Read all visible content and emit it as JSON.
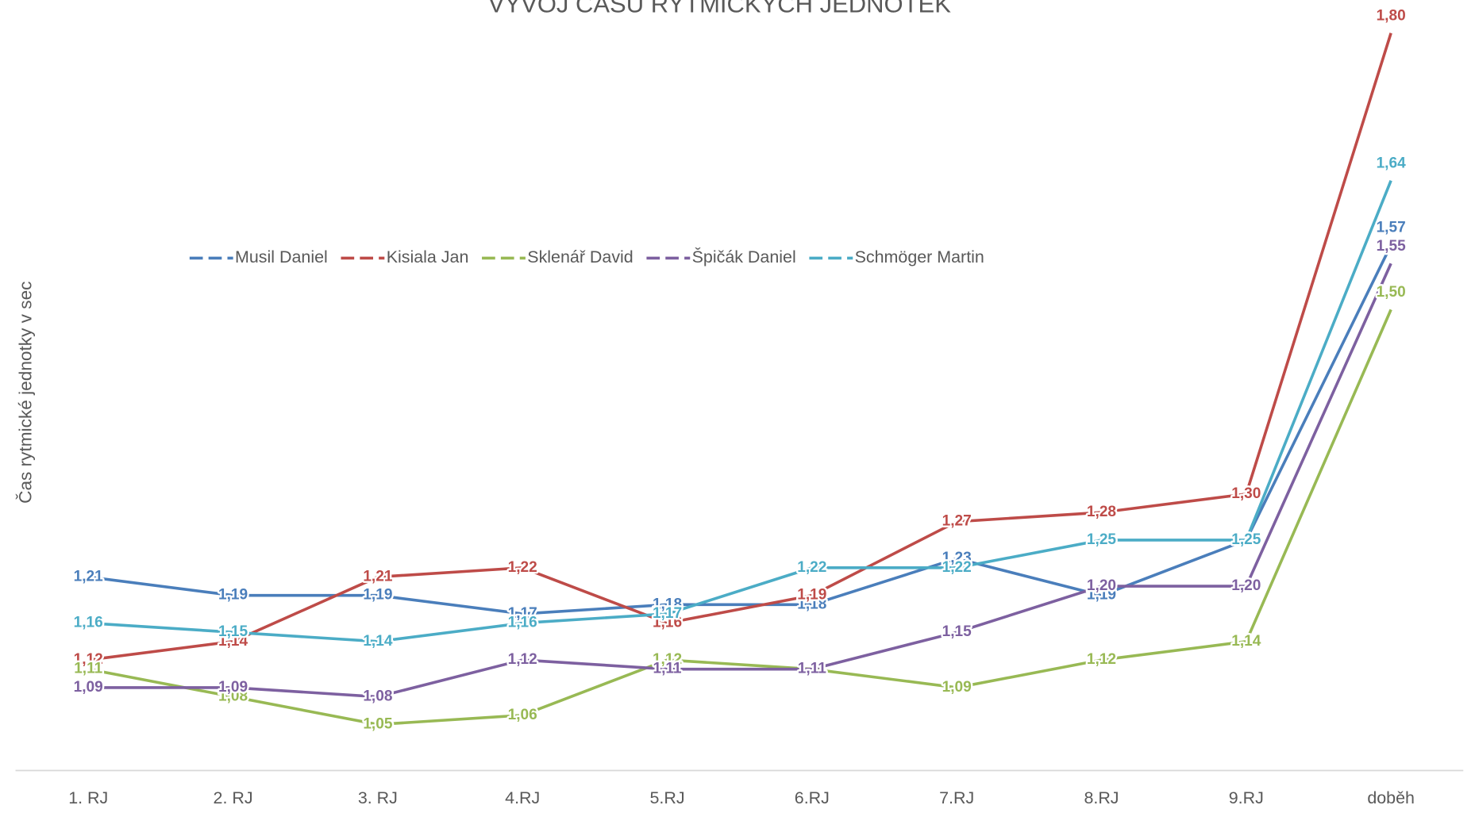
{
  "chart_data": {
    "type": "line",
    "title": "VÝVOJ ČASU RYTMICKÝCH JEDNOTEK",
    "y_label": "Čas rytmické jednotky v sec",
    "categories": [
      "1. RJ",
      "2. RJ",
      "3. RJ",
      "4.RJ",
      "5.RJ",
      "6.RJ",
      "7.RJ",
      "8.RJ",
      "9.RJ",
      "doběh"
    ],
    "ylim": [
      1,
      1.8
    ],
    "legend": "top",
    "series": [
      {
        "name": "Musil Daniel",
        "color": "#4a7ebb",
        "values": [
          1.21,
          1.19,
          1.19,
          1.17,
          1.18,
          1.18,
          1.23,
          1.19,
          1.25,
          1.57
        ],
        "value_labels": [
          "1,21",
          "1,19",
          "1,19",
          "1,17",
          "1,18",
          "1,18",
          "1,23",
          "1,19",
          "1,25",
          "1,57"
        ]
      },
      {
        "name": "Kisiala Jan",
        "color": "#be4b48",
        "values": [
          1.12,
          1.14,
          1.21,
          1.22,
          1.16,
          1.19,
          1.27,
          1.28,
          1.3,
          1.8
        ],
        "value_labels": [
          "1,12",
          "1,14",
          "1,21",
          "1,22",
          "1,16",
          "1,19",
          "1,27",
          "1,28",
          "1,30",
          "1,80"
        ]
      },
      {
        "name": "Sklenář David",
        "color": "#98b954",
        "values": [
          1.11,
          1.08,
          1.05,
          1.06,
          1.12,
          1.11,
          1.09,
          1.12,
          1.14,
          1.5
        ],
        "value_labels": [
          "1,11",
          "1,08",
          "1,05",
          "1,06",
          "1,12",
          "1,11",
          "1,09",
          "1,12",
          "1,14",
          "1,50"
        ]
      },
      {
        "name": "Špičák Daniel",
        "color": "#7d60a0",
        "values": [
          1.09,
          1.09,
          1.08,
          1.12,
          1.11,
          1.11,
          1.15,
          1.2,
          1.2,
          1.55
        ],
        "value_labels": [
          "1,09",
          "1,09",
          "1,08",
          "1,12",
          "1,11",
          "1,11",
          "1,15",
          "1,20",
          "1,20",
          "1,55"
        ]
      },
      {
        "name": "Schmöger Martin",
        "color": "#4bacc6",
        "values": [
          1.16,
          1.15,
          1.14,
          1.16,
          1.17,
          1.22,
          1.22,
          1.25,
          1.25,
          1.64
        ],
        "value_labels": [
          "1,16",
          "1,15",
          "1,14",
          "1,16",
          "1,17",
          "1,22",
          "1,22",
          "1,25",
          "1,25",
          "1,64"
        ]
      }
    ]
  }
}
